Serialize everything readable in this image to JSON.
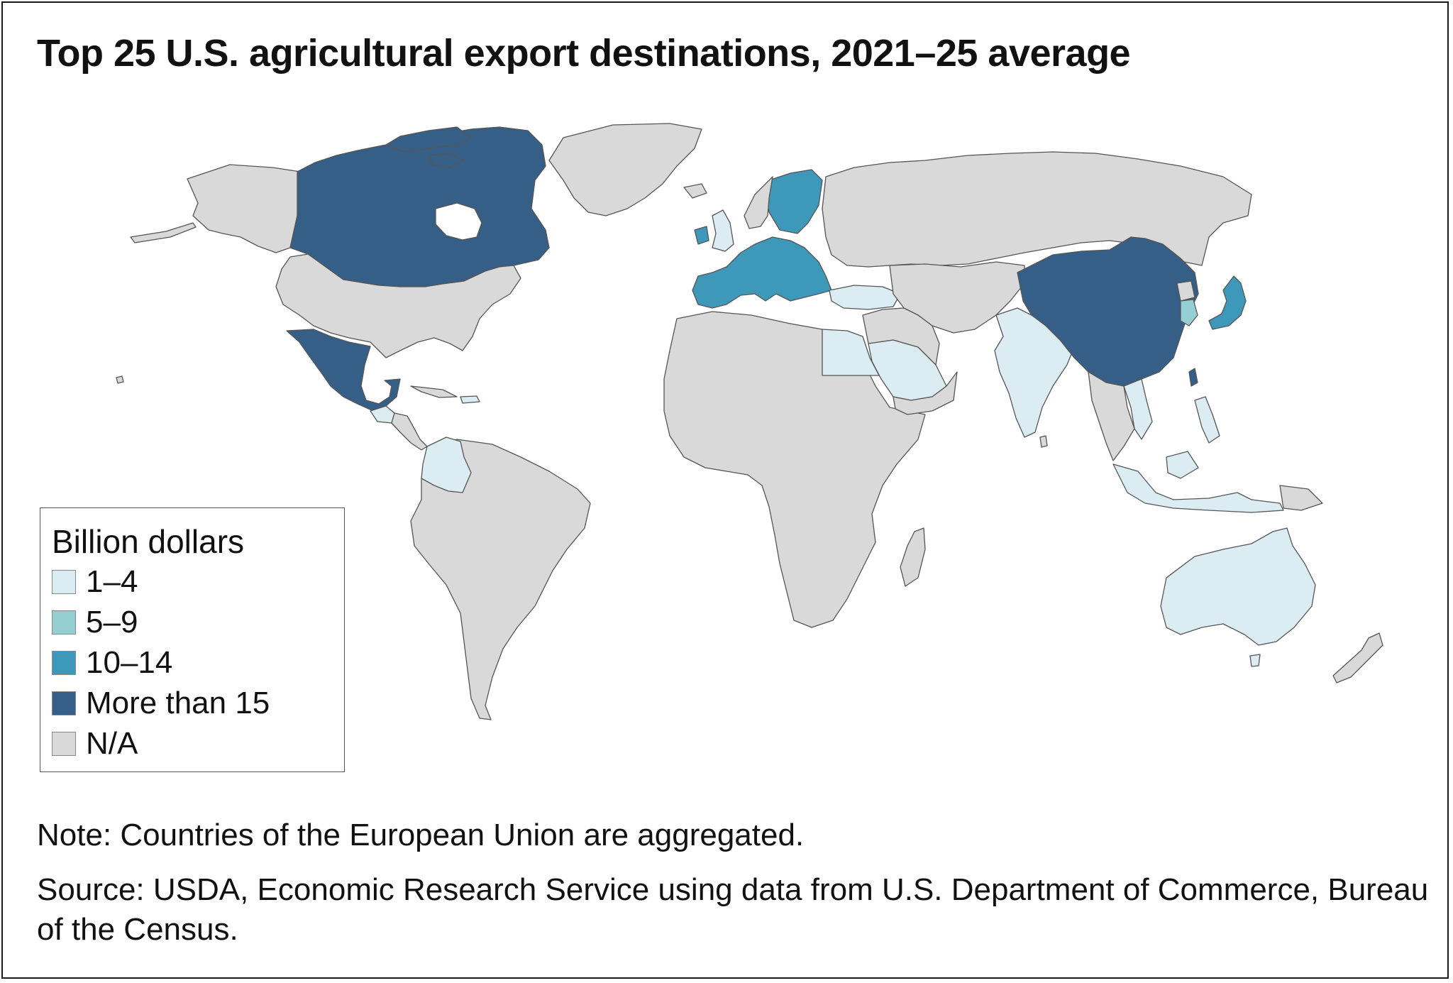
{
  "title": "Top 25 U.S. agricultural export destinations, 2021–25 average",
  "legend": {
    "title": "Billion dollars",
    "items": [
      {
        "label": "1–4",
        "color": "#dcecf3"
      },
      {
        "label": "5–9",
        "color": "#96cfd3"
      },
      {
        "label": "10–14",
        "color": "#3d98ba"
      },
      {
        "label": "More than 15",
        "color": "#365f87"
      },
      {
        "label": "N/A",
        "color": "#d9d9d9"
      }
    ]
  },
  "map": {
    "land_color": "#d9d9d9",
    "border_color": "#555555",
    "categories": {
      "more_than_15": [
        "Canada",
        "Mexico",
        "China"
      ],
      "10_14": [
        "European Union",
        "Japan"
      ],
      "5_9": [
        "South Korea"
      ],
      "1_4": [
        "United Kingdom",
        "Turkey",
        "Egypt",
        "Saudi Arabia",
        "India",
        "Vietnam",
        "Philippines",
        "Indonesia",
        "Australia",
        "Colombia",
        "Guatemala"
      ]
    }
  },
  "note": "Note: Countries of the European Union are aggregated.",
  "source": "Source: USDA, Economic Research Service using data from U.S. Department of Commerce, Bureau of the Census."
}
